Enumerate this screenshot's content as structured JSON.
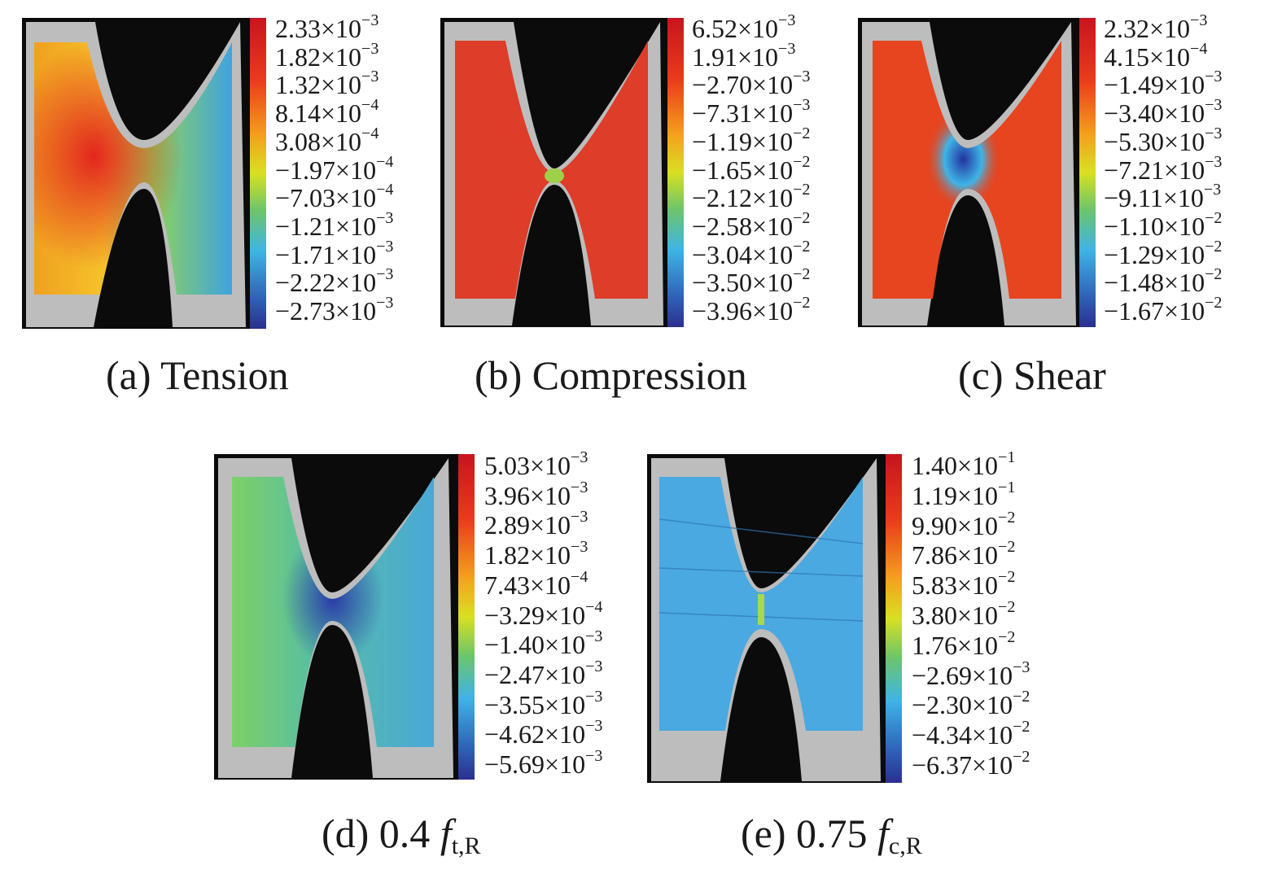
{
  "panels": [
    {
      "id": "a",
      "caption": "(a) Tension",
      "ticks": [
        {
          "m": "2.33",
          "e": "−3"
        },
        {
          "m": "1.82",
          "e": "−3"
        },
        {
          "m": "1.32",
          "e": "−3"
        },
        {
          "m": "8.14",
          "e": "−4"
        },
        {
          "m": "3.08",
          "e": "−4"
        },
        {
          "m": "−1.97",
          "e": "−4"
        },
        {
          "m": "−7.03",
          "e": "−4"
        },
        {
          "m": "−1.21",
          "e": "−3"
        },
        {
          "m": "−1.71",
          "e": "−3"
        },
        {
          "m": "−2.22",
          "e": "−3"
        },
        {
          "m": "−2.73",
          "e": "−3"
        }
      ]
    },
    {
      "id": "b",
      "caption": "(b) Compression",
      "ticks": [
        {
          "m": "6.52",
          "e": "−3"
        },
        {
          "m": "1.91",
          "e": "−3"
        },
        {
          "m": "−2.70",
          "e": "−3"
        },
        {
          "m": "−7.31",
          "e": "−3"
        },
        {
          "m": "−1.19",
          "e": "−2"
        },
        {
          "m": "−1.65",
          "e": "−2"
        },
        {
          "m": "−2.12",
          "e": "−2"
        },
        {
          "m": "−2.58",
          "e": "−2"
        },
        {
          "m": "−3.04",
          "e": "−2"
        },
        {
          "m": "−3.50",
          "e": "−2"
        },
        {
          "m": "−3.96",
          "e": "−2"
        }
      ]
    },
    {
      "id": "c",
      "caption": "(c) Shear",
      "ticks": [
        {
          "m": "2.32",
          "e": "−3"
        },
        {
          "m": "4.15",
          "e": "−4"
        },
        {
          "m": "−1.49",
          "e": "−3"
        },
        {
          "m": "−3.40",
          "e": "−3"
        },
        {
          "m": "−5.30",
          "e": "−3"
        },
        {
          "m": "−7.21",
          "e": "−3"
        },
        {
          "m": "−9.11",
          "e": "−3"
        },
        {
          "m": "−1.10",
          "e": "−2"
        },
        {
          "m": "−1.29",
          "e": "−2"
        },
        {
          "m": "−1.48",
          "e": "−2"
        },
        {
          "m": "−1.67",
          "e": "−2"
        }
      ]
    },
    {
      "id": "d",
      "caption_prefix": "(d) 0.4 ",
      "caption_symbol": "f",
      "caption_sub": "t,R",
      "ticks": [
        {
          "m": "5.03",
          "e": "−3"
        },
        {
          "m": "3.96",
          "e": "−3"
        },
        {
          "m": "2.89",
          "e": "−3"
        },
        {
          "m": "1.82",
          "e": "−3"
        },
        {
          "m": "7.43",
          "e": "−4"
        },
        {
          "m": "−3.29",
          "e": "−4"
        },
        {
          "m": "−1.40",
          "e": "−3"
        },
        {
          "m": "−2.47",
          "e": "−3"
        },
        {
          "m": "−3.55",
          "e": "−3"
        },
        {
          "m": "−4.62",
          "e": "−3"
        },
        {
          "m": "−5.69",
          "e": "−3"
        }
      ]
    },
    {
      "id": "e",
      "caption_prefix": "(e) 0.75 ",
      "caption_symbol": "f",
      "caption_sub": "c,R",
      "ticks": [
        {
          "m": "1.40",
          "e": "−1"
        },
        {
          "m": "1.19",
          "e": "−1"
        },
        {
          "m": "9.90",
          "e": "−2"
        },
        {
          "m": "7.86",
          "e": "−2"
        },
        {
          "m": "5.83",
          "e": "−2"
        },
        {
          "m": "3.80",
          "e": "−2"
        },
        {
          "m": "1.76",
          "e": "−2"
        },
        {
          "m": "−2.69",
          "e": "−3"
        },
        {
          "m": "−2.30",
          "e": "−2"
        },
        {
          "m": "−4.34",
          "e": "−2"
        },
        {
          "m": "−6.37",
          "e": "−2"
        }
      ]
    }
  ],
  "tick_sep": "×10",
  "colors": {
    "jet_top": "#d7181f",
    "jet_upper": "#f27a1d",
    "jet_mid": "#e4df20",
    "jet_lowmid": "#3fb4e6",
    "jet_bottom": "#2b2f8f",
    "specimen_edge": "#c9c9c9",
    "background": "#0b0b0b"
  }
}
